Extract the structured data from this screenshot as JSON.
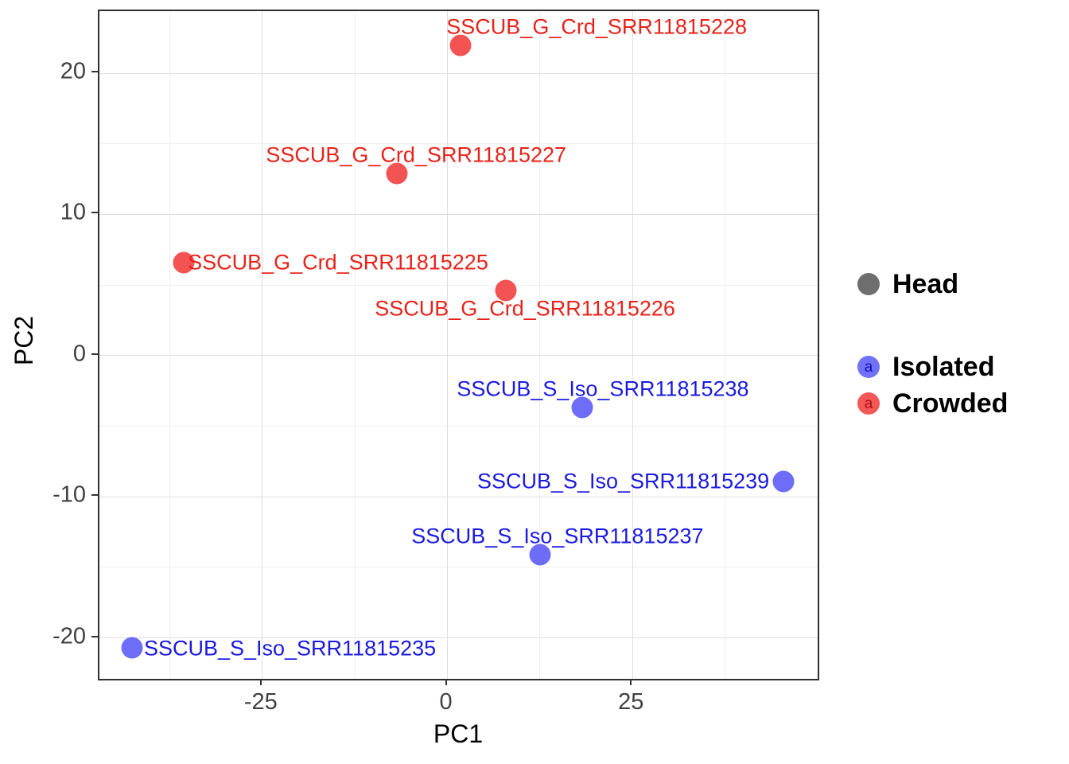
{
  "chart_data": {
    "type": "scatter",
    "title": "",
    "xlabel": "PC1",
    "ylabel": "PC2",
    "xlim": [
      -47,
      50
    ],
    "ylim": [
      -22.9,
      24.4
    ],
    "x_ticks": [
      -25,
      0,
      25
    ],
    "y_ticks": [
      -20,
      -10,
      0,
      10,
      20
    ],
    "x_minor_ticks": [
      -37.5,
      -12.5,
      12.5,
      37.5
    ],
    "y_minor_ticks": [
      -15,
      -5,
      5,
      15
    ],
    "grid": true,
    "legend_position": "right",
    "series": [
      {
        "name": "Crowded",
        "point_color": "rgba(240,40,40,0.8)",
        "label_color": "#e8221a",
        "points": [
          {
            "label": "SSCUB_G_Crd_SRR11815228",
            "x": 1.8,
            "y": 22.0,
            "label_anchor": "left",
            "label_dx": -18,
            "label_dy": -23
          },
          {
            "label": "SSCUB_G_Crd_SRR11815227",
            "x": -6.8,
            "y": 12.9,
            "label_anchor": "center",
            "label_dx": 24,
            "label_dy": -23
          },
          {
            "label": "SSCUB_G_Crd_SRR11815225",
            "x": -35.6,
            "y": 6.6,
            "label_anchor": "left",
            "label_dx": 5,
            "label_dy": 0
          },
          {
            "label": "SSCUB_G_Crd_SRR11815226",
            "x": 7.9,
            "y": 4.6,
            "label_anchor": "center",
            "label_dx": 24,
            "label_dy": 23
          }
        ]
      },
      {
        "name": "Isolated",
        "point_color": "rgba(60,60,245,0.75)",
        "label_color": "#1a1ae0",
        "points": [
          {
            "label": "SSCUB_S_Iso_SRR11815238",
            "x": 18.2,
            "y": -3.7,
            "label_anchor": "center",
            "label_dx": 26,
            "label_dy": -23
          },
          {
            "label": "SSCUB_S_Iso_SRR11815239",
            "x": 45.4,
            "y": -8.9,
            "label_anchor": "right",
            "label_dx": -18,
            "label_dy": 0
          },
          {
            "label": "SSCUB_S_Iso_SRR11815237",
            "x": 12.5,
            "y": -14.1,
            "label_anchor": "center",
            "label_dx": 22,
            "label_dy": -23
          },
          {
            "label": "SSCUB_S_Iso_SRR11815235",
            "x": -42.6,
            "y": -20.7,
            "label_anchor": "left",
            "label_dx": 15,
            "label_dy": 1
          }
        ]
      }
    ]
  },
  "legend": {
    "head": {
      "label": "Head",
      "dot_color": "#6e6e6e"
    },
    "isolated": {
      "label": "Isolated",
      "glyph": "a",
      "dot_color": "rgba(60,60,245,0.72)",
      "glyph_color": "#1010b8"
    },
    "crowded": {
      "label": "Crowded",
      "glyph": "a",
      "dot_color": "rgba(240,40,40,0.78)",
      "glyph_color": "#b01010"
    }
  }
}
